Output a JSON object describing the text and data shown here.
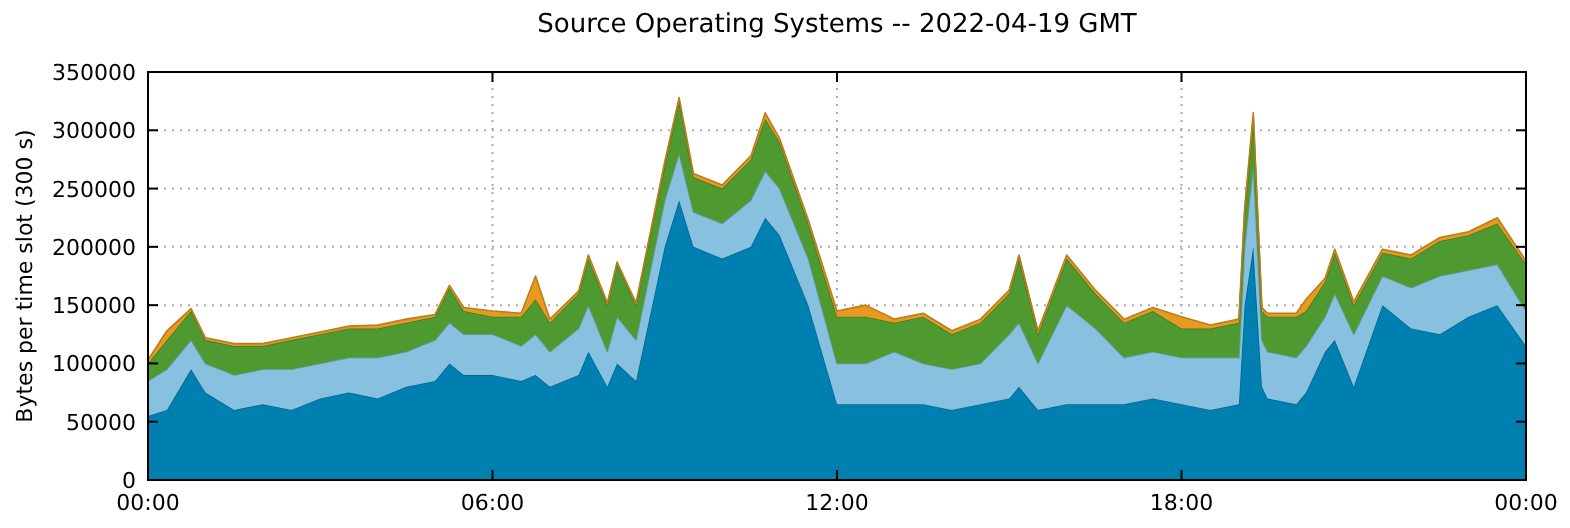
{
  "chart_data": {
    "type": "area",
    "stacked": true,
    "title": "Source Operating Systems -- 2022-04-19 GMT",
    "ylabel": "Bytes per time slot (300 s)",
    "x": [
      0,
      0.33,
      0.75,
      1,
      1.5,
      2,
      2.5,
      3,
      3.5,
      4,
      4.5,
      5,
      5.25,
      5.5,
      6,
      6.5,
      6.75,
      7,
      7.5,
      7.67,
      8,
      8.17,
      8.5,
      9,
      9.25,
      9.5,
      10,
      10.5,
      10.75,
      11,
      11.5,
      12,
      12.5,
      13,
      13.5,
      14,
      14.5,
      15,
      15.17,
      15.5,
      16,
      16.5,
      17,
      17.5,
      18,
      18.5,
      19,
      19.1,
      19.25,
      19.4,
      19.5,
      20,
      20.17,
      20.5,
      20.67,
      21,
      21.5,
      22,
      22.5,
      23,
      23.5,
      24
    ],
    "series": [
      {
        "color": "#0080b0",
        "values": [
          55000,
          60000,
          95000,
          75000,
          60000,
          65000,
          60000,
          70000,
          75000,
          70000,
          80000,
          85000,
          100000,
          90000,
          90000,
          85000,
          90000,
          80000,
          90000,
          110000,
          80000,
          100000,
          85000,
          200000,
          240000,
          200000,
          190000,
          200000,
          225000,
          210000,
          150000,
          65000,
          65000,
          65000,
          65000,
          60000,
          65000,
          70000,
          80000,
          60000,
          65000,
          65000,
          65000,
          70000,
          65000,
          60000,
          65000,
          150000,
          200000,
          80000,
          70000,
          65000,
          75000,
          110000,
          120000,
          80000,
          150000,
          130000,
          125000,
          140000,
          150000,
          115000
        ]
      },
      {
        "color": "#88c0e0",
        "values": [
          30000,
          35000,
          25000,
          25000,
          30000,
          30000,
          35000,
          30000,
          30000,
          35000,
          30000,
          35000,
          35000,
          35000,
          35000,
          30000,
          35000,
          30000,
          40000,
          40000,
          30000,
          40000,
          35000,
          40000,
          40000,
          30000,
          30000,
          40000,
          40000,
          40000,
          40000,
          35000,
          35000,
          45000,
          35000,
          35000,
          35000,
          55000,
          55000,
          40000,
          85000,
          65000,
          40000,
          40000,
          40000,
          45000,
          40000,
          50000,
          70000,
          40000,
          40000,
          40000,
          40000,
          30000,
          40000,
          45000,
          25000,
          35000,
          50000,
          40000,
          35000,
          30000
        ]
      },
      {
        "color": "#4e9a30",
        "values": [
          15000,
          25000,
          25000,
          20000,
          25000,
          20000,
          25000,
          25000,
          25000,
          25000,
          25000,
          20000,
          30000,
          20000,
          15000,
          25000,
          30000,
          25000,
          30000,
          40000,
          40000,
          45000,
          30000,
          30000,
          45000,
          30000,
          30000,
          35000,
          45000,
          40000,
          30000,
          40000,
          40000,
          25000,
          40000,
          30000,
          35000,
          35000,
          55000,
          25000,
          40000,
          30000,
          30000,
          35000,
          25000,
          25000,
          30000,
          30000,
          40000,
          25000,
          30000,
          35000,
          30000,
          30000,
          35000,
          25000,
          20000,
          25000,
          30000,
          30000,
          35000,
          40000
        ]
      },
      {
        "color": "#e89a20",
        "values": [
          3000,
          8000,
          2000,
          2000,
          2000,
          2000,
          2000,
          2000,
          2000,
          3000,
          3000,
          2000,
          2000,
          3000,
          5000,
          3000,
          20000,
          3000,
          2000,
          3000,
          2000,
          2000,
          2000,
          3000,
          3000,
          3000,
          3000,
          3000,
          5000,
          3000,
          3000,
          5000,
          10000,
          3000,
          3000,
          3000,
          3000,
          3000,
          3000,
          3000,
          3000,
          3000,
          3000,
          3000,
          10000,
          3000,
          3000,
          3000,
          5000,
          3000,
          3000,
          3000,
          10000,
          3000,
          3000,
          3000,
          3000,
          3000,
          3000,
          3000,
          5000,
          3000
        ]
      }
    ],
    "xlim": [
      0,
      24
    ],
    "xticks": [
      {
        "value": 0,
        "label": "00:00"
      },
      {
        "value": 6,
        "label": "06:00"
      },
      {
        "value": 12,
        "label": "12:00"
      },
      {
        "value": 18,
        "label": "18:00"
      },
      {
        "value": 24,
        "label": "00:00"
      }
    ],
    "ylim": [
      0,
      350000
    ],
    "yticks": [
      0,
      50000,
      100000,
      150000,
      200000,
      250000,
      300000,
      350000
    ],
    "grid": true
  }
}
